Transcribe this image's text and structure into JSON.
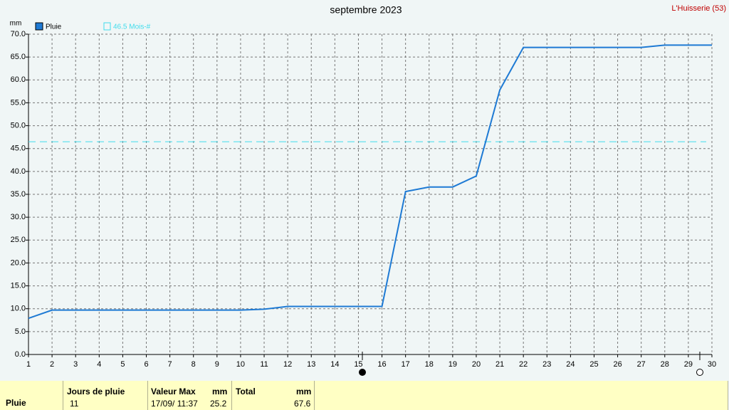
{
  "chart_data": {
    "type": "line",
    "title": "septembre 2023",
    "station": "L'Huisserie (53)",
    "y_unit": "mm",
    "x": [
      1,
      2,
      3,
      4,
      5,
      6,
      7,
      8,
      9,
      10,
      11,
      12,
      13,
      14,
      15,
      16,
      17,
      18,
      19,
      20,
      21,
      22,
      23,
      24,
      25,
      26,
      27,
      28,
      29,
      30
    ],
    "series": [
      {
        "name": "Pluie",
        "color": "#1e7ad4",
        "values": [
          7.9,
          9.7,
          9.7,
          9.7,
          9.7,
          9.7,
          9.7,
          9.7,
          9.7,
          9.7,
          9.9,
          10.5,
          10.5,
          10.5,
          10.5,
          10.5,
          35.6,
          36.6,
          36.6,
          39.0,
          57.8,
          67.1,
          67.1,
          67.1,
          67.1,
          67.1,
          67.1,
          67.6,
          67.6,
          67.6
        ]
      }
    ],
    "reference_line": {
      "value": 46.5,
      "label": "46.5 Mois-#",
      "color": "#40dcec"
    },
    "xlim": [
      1,
      30
    ],
    "xticks": [
      1,
      2,
      3,
      4,
      5,
      6,
      7,
      8,
      9,
      10,
      11,
      12,
      13,
      14,
      15,
      16,
      17,
      18,
      19,
      20,
      21,
      22,
      23,
      24,
      25,
      26,
      27,
      28,
      29,
      30
    ],
    "ylim": [
      0,
      70
    ],
    "yticks": [
      {
        "value": 0,
        "label": "0.0"
      },
      {
        "value": 5,
        "label": "5.0"
      },
      {
        "value": 10,
        "label": "10.0"
      },
      {
        "value": 15,
        "label": "15.0"
      },
      {
        "value": 20,
        "label": "20.0"
      },
      {
        "value": 25,
        "label": "25.0"
      },
      {
        "value": 30,
        "label": "30.0"
      },
      {
        "value": 35,
        "label": "35.0"
      },
      {
        "value": 40,
        "label": "40.0"
      },
      {
        "value": 45,
        "label": "45.0"
      },
      {
        "value": 50,
        "label": "50.0"
      },
      {
        "value": 55,
        "label": "55.0"
      },
      {
        "value": 60,
        "label": "60.0"
      },
      {
        "value": 65,
        "label": "65.0"
      },
      {
        "value": 70,
        "label": "70.0"
      }
    ],
    "grid": true
  },
  "summary": {
    "row_label": "Pluie",
    "rain_days": {
      "header": "Jours de pluie",
      "value": 11
    },
    "max_value": {
      "header": "Valeur Max",
      "unit": "mm",
      "date": "17/09/ 11:37",
      "value": 25.2
    },
    "total": {
      "header": "Total",
      "unit": "mm",
      "value": 67.6
    }
  }
}
